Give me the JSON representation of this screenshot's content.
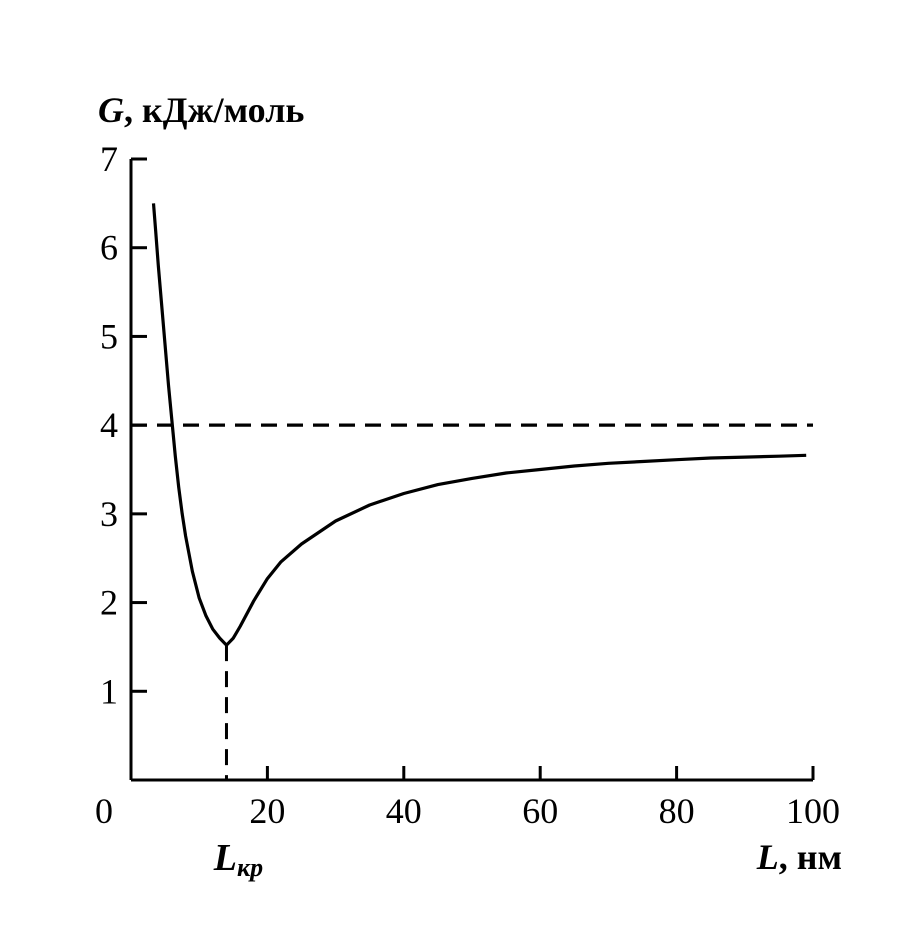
{
  "chart_data": {
    "type": "line",
    "ylabel": {
      "symbol": "G",
      "unit": ", кДж/моль"
    },
    "xlabel": {
      "symbol": "L",
      "unit": ", нм"
    },
    "xlim": [
      0,
      100
    ],
    "ylim": [
      0,
      7
    ],
    "x_ticks": [
      0,
      20,
      40,
      60,
      80,
      100
    ],
    "x_tick_labels": [
      "0",
      "20",
      "40",
      "60",
      "80",
      "100"
    ],
    "y_ticks": [
      1,
      2,
      3,
      4,
      5,
      6,
      7
    ],
    "y_tick_labels": [
      "1",
      "2",
      "3",
      "4",
      "5",
      "6",
      "7"
    ],
    "grid": false,
    "series": [
      {
        "style": "solid",
        "x": [
          3.3,
          3.6,
          4.0,
          4.5,
          5.0,
          5.5,
          6.0,
          6.5,
          7.0,
          7.5,
          8.0,
          9.0,
          10.0,
          11.0,
          12.0,
          13.0,
          14.0,
          15.0,
          16.0,
          18.0,
          20.0,
          22.0,
          25.0,
          30.0,
          35.0,
          40.0,
          45.0,
          50.0,
          55.0,
          60.0,
          65.0,
          70.0,
          75.0,
          80.0,
          85.0,
          90.0,
          95.0,
          99.0
        ],
        "y": [
          6.5,
          6.2,
          5.8,
          5.35,
          4.9,
          4.45,
          4.05,
          3.65,
          3.3,
          3.0,
          2.75,
          2.35,
          2.05,
          1.85,
          1.7,
          1.6,
          1.52,
          1.6,
          1.73,
          2.02,
          2.27,
          2.46,
          2.66,
          2.92,
          3.1,
          3.23,
          3.33,
          3.4,
          3.46,
          3.5,
          3.54,
          3.57,
          3.59,
          3.61,
          3.63,
          3.64,
          3.65,
          3.66
        ]
      },
      {
        "style": "dashed",
        "x": [
          0,
          100
        ],
        "y": [
          4.0,
          4.0
        ]
      }
    ],
    "annotations": [
      {
        "kind": "vertical-dashed-marker",
        "x": 14,
        "y_from": 0,
        "y_to": 1.52,
        "label_main": "L",
        "label_sub": "кр"
      }
    ]
  }
}
